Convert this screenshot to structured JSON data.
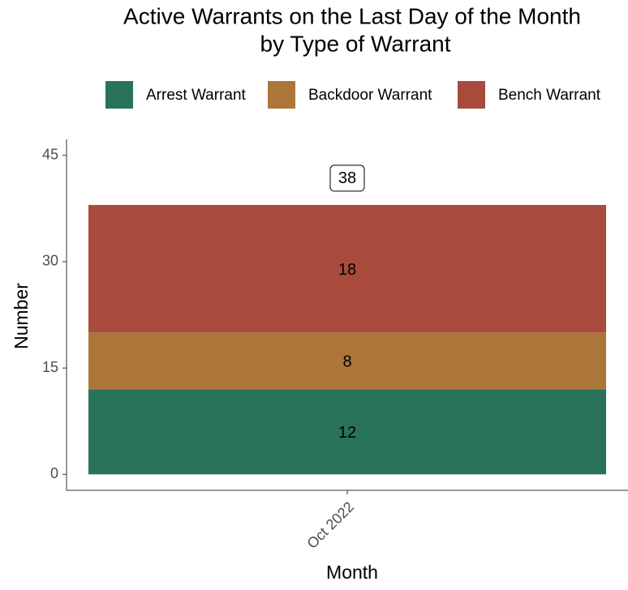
{
  "chart_data": {
    "type": "stacked_bar",
    "title": [
      "Active Warrants on the Last Day of the Month",
      "by Type of Warrant"
    ],
    "x_label": "Month",
    "y_label": "Number",
    "categories": [
      "Oct 2022"
    ],
    "series": [
      {
        "name": "Arrest Warrant",
        "color": "#29735a",
        "values": [
          12
        ]
      },
      {
        "name": "Backdoor Warrant",
        "color": "#ac763a",
        "values": [
          8
        ]
      },
      {
        "name": "Bench Warrant",
        "color": "#a94b3c",
        "values": [
          18
        ]
      }
    ],
    "totals": [
      38
    ],
    "ylim": [
      -2.25,
      47.25
    ],
    "yticks": [
      0,
      15,
      30,
      45
    ],
    "legend": "top",
    "grid": false
  }
}
